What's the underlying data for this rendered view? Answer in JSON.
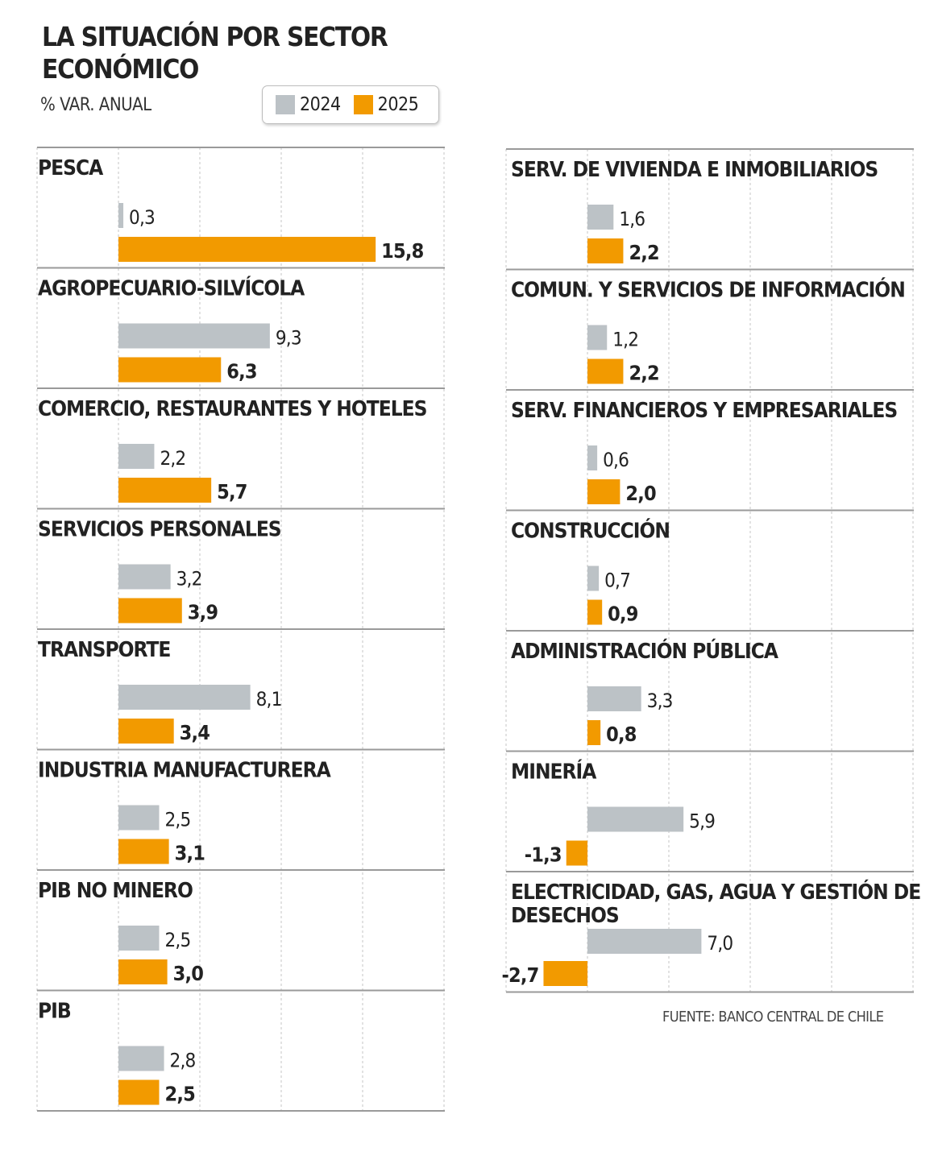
{
  "title": "LA SITUACIÓN POR SECTOR ECONÓMICO",
  "subtitle": "% VAR. ANUAL",
  "source": "FUENTE: BANCO CENTRAL DE CHILE",
  "colors": {
    "2024": "#bcc2c6",
    "2025": "#f29a00",
    "rule": "#9a9a9a",
    "grid": "#c4c4c4"
  },
  "chart_data": [
    {
      "type": "bar",
      "orientation": "horizontal",
      "series_names": [
        "2024",
        "2025"
      ],
      "categories": [
        "PESCA",
        "AGROPECUARIO-SILVÍCOLA",
        "COMERCIO, RESTAURANTES Y HOTELES",
        "SERVICIOS PERSONALES",
        "TRANSPORTE",
        "INDUSTRIA MANUFACTURERA",
        "PIB NO MINERO",
        "PIB"
      ],
      "series": [
        {
          "name": "2024",
          "values": [
            0.3,
            9.3,
            2.2,
            3.2,
            8.1,
            2.5,
            2.5,
            2.8
          ],
          "labels": [
            "0,3",
            "9,3",
            "2,2",
            "3,2",
            "8,1",
            "2,5",
            "2,5",
            "2,8"
          ]
        },
        {
          "name": "2025",
          "values": [
            15.8,
            6.3,
            5.7,
            3.9,
            3.4,
            3.1,
            3.0,
            2.5
          ],
          "labels": [
            "15,8",
            "6,3",
            "5,7",
            "3,9",
            "3,4",
            "3,1",
            "3,0",
            "2,5"
          ]
        }
      ],
      "xlim": [
        -5,
        20
      ],
      "grid": true
    },
    {
      "type": "bar",
      "orientation": "horizontal",
      "series_names": [
        "2024",
        "2025"
      ],
      "categories": [
        "SERV. DE VIVIENDA E INMOBILIARIOS",
        "COMUN. Y SERVICIOS DE INFORMACIÓN",
        "SERV. FINANCIEROS Y EMPRESARIALES",
        "CONSTRUCCIÓN",
        "ADMINISTRACIÓN PÚBLICA",
        "MINERÍA",
        "ELECTRICIDAD, GAS, AGUA Y GESTIÓN DE DESECHOS"
      ],
      "series": [
        {
          "name": "2024",
          "values": [
            1.6,
            1.2,
            0.6,
            0.7,
            3.3,
            5.9,
            7.0
          ],
          "labels": [
            "1,6",
            "1,2",
            "0,6",
            "0,7",
            "3,3",
            "5,9",
            "7,0"
          ]
        },
        {
          "name": "2025",
          "values": [
            2.2,
            2.2,
            2.0,
            0.9,
            0.8,
            -1.3,
            -2.7
          ],
          "labels": [
            "2,2",
            "2,2",
            "2,0",
            "0,9",
            "0,8",
            "-1,3",
            "-2,7"
          ]
        }
      ],
      "xlim": [
        -5,
        20
      ],
      "grid": true
    }
  ]
}
